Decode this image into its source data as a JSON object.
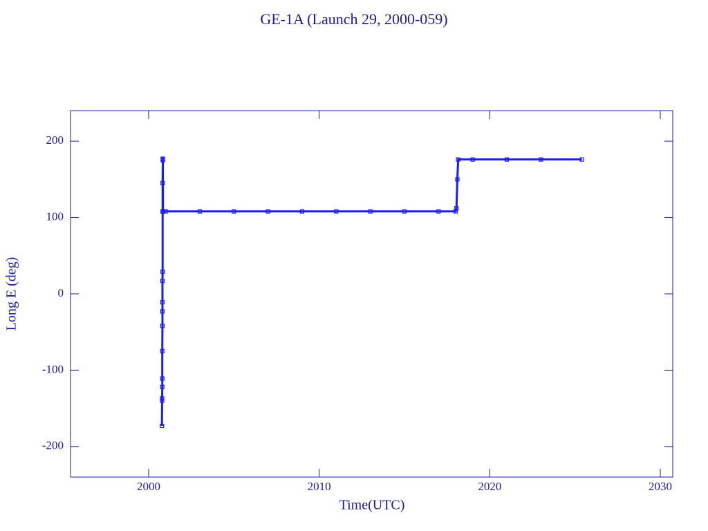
{
  "chart_data": {
    "type": "line",
    "title": "GE-1A (Launch 29, 2000-059)",
    "x_label": "Time(UTC)",
    "y_label": "Long E (deg)",
    "xlim": [
      1995.42,
      2030.73
    ],
    "xticks": [
      2000,
      2010,
      2020,
      2030
    ],
    "ylim": [
      -240,
      240
    ],
    "yticks": [
      -200,
      -100,
      0,
      100,
      200
    ],
    "series": [
      {
        "name": "GE-1A",
        "color": "#1a1aff",
        "x": [
          2000.78,
          2000.79,
          2000.79,
          2000.8,
          2000.8,
          2000.8,
          2000.81,
          2000.81,
          2000.81,
          2000.81,
          2000.82,
          2000.82,
          2000.82,
          2000.83,
          2000.83,
          2000.83,
          2000.84,
          2001.0,
          2003.0,
          2005.0,
          2007.0,
          2009.0,
          2011.0,
          2013.0,
          2015.0,
          2017.0,
          2018.0,
          2018.05,
          2018.1,
          2018.15,
          2019.0,
          2021.0,
          2023.0,
          2025.4
        ],
        "values": [
          -173,
          -140,
          -137,
          -122,
          -111,
          -75,
          -42,
          -23,
          -11,
          17,
          29,
          108,
          145,
          175,
          177,
          176,
          108,
          108,
          108,
          108,
          108,
          108,
          108,
          108,
          108,
          108,
          108,
          112,
          150,
          176,
          176,
          176,
          176,
          176
        ]
      }
    ]
  }
}
